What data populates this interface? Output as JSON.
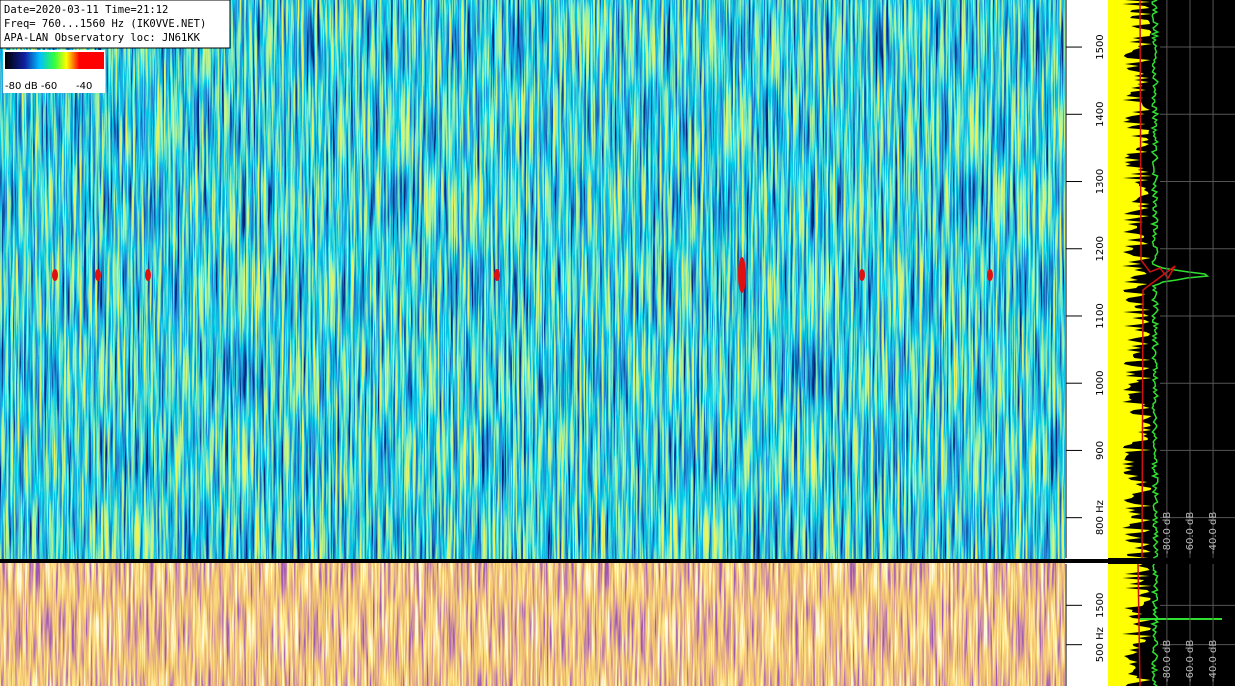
{
  "header": {
    "lines": [
      "Date=2020-03-11 Time=21:12",
      "Freq= 760...1560 Hz (IK0VVE.NET)",
      "APA-LAN Observatory loc: JN61KK"
    ]
  },
  "colorbar": {
    "labels": [
      "-80 dB -60",
      "-40"
    ]
  },
  "top_panel": {
    "ylim": [
      740,
      1570
    ],
    "yticks": [
      {
        "value": 800,
        "label": "800 Hz"
      },
      900,
      1000,
      1100,
      1200,
      1300,
      1400,
      1500
    ],
    "xlim": [
      -131,
      -21
    ],
    "xticks": [
      {
        "value": -80,
        "label": "-80.0 dB"
      },
      {
        "value": -60,
        "label": "-60.0 dB"
      },
      {
        "value": -40,
        "label": "-40.0 dB"
      }
    ]
  },
  "bottom_panel": {
    "ylim": [
      -550,
      2550
    ],
    "yticks": [
      {
        "value": 500,
        "label": "500 Hz"
      },
      1500
    ],
    "xlim": [
      -131,
      -21
    ],
    "xticks": [
      {
        "value": -80,
        "label": "-80.0 dB"
      },
      {
        "value": -60,
        "label": "-60.0 dB"
      },
      {
        "value": -40,
        "label": "-40.0 dB"
      }
    ]
  }
}
